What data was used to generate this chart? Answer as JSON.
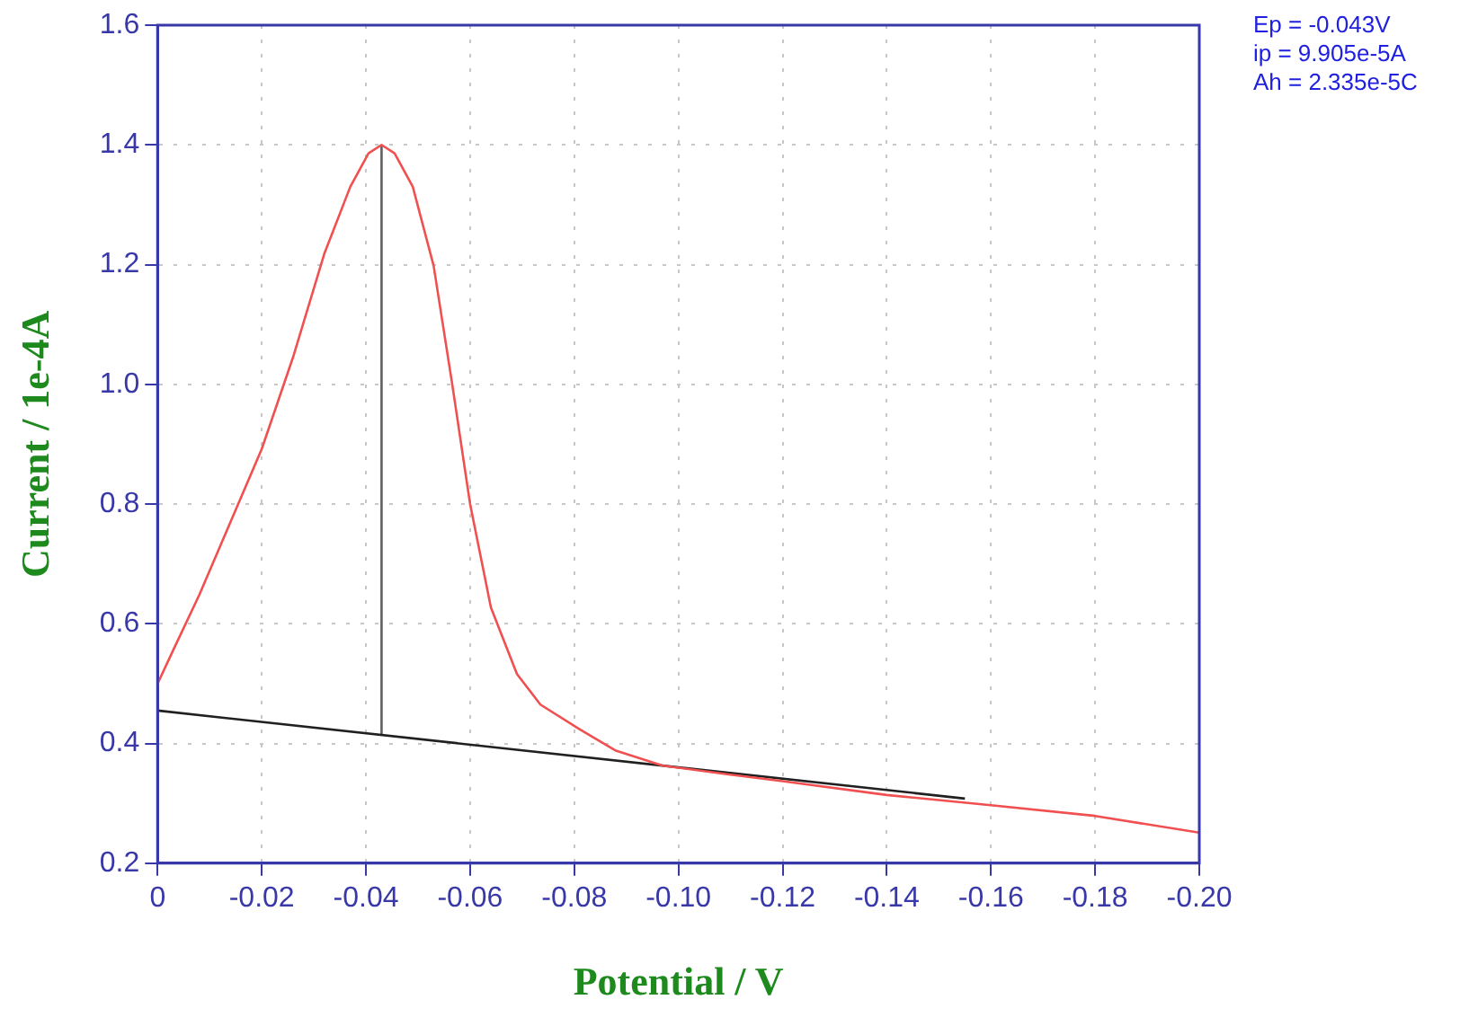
{
  "chart_data": {
    "type": "line",
    "xlabel": "Potential / V",
    "ylabel": "Current / 1e-4A",
    "annotations": [
      "Ep = -0.043V",
      "ip = 9.905e-5A",
      "Ah = 2.335e-5C"
    ],
    "xlim": [
      0,
      -0.2
    ],
    "xticks": [
      {
        "value": 0,
        "label": "0"
      },
      {
        "value": -0.02,
        "label": "-0.02"
      },
      {
        "value": -0.04,
        "label": "-0.04"
      },
      {
        "value": -0.06,
        "label": "-0.06"
      },
      {
        "value": -0.08,
        "label": "-0.08"
      },
      {
        "value": -0.1,
        "label": "-0.10"
      },
      {
        "value": -0.12,
        "label": "-0.12"
      },
      {
        "value": -0.14,
        "label": "-0.14"
      },
      {
        "value": -0.16,
        "label": "-0.16"
      },
      {
        "value": -0.18,
        "label": "-0.18"
      },
      {
        "value": -0.2,
        "label": "-0.20"
      }
    ],
    "ylim": [
      0.2,
      1.6
    ],
    "yticks": [
      0.2,
      0.4,
      0.6,
      0.8,
      {
        "value": 1,
        "label": "1.0"
      },
      1.2,
      1.4,
      1.6
    ],
    "grid": true,
    "series": [
      {
        "color": "#f05050",
        "x": [
          0,
          -0.003,
          -0.008,
          -0.014,
          -0.02,
          -0.026,
          -0.032,
          -0.037,
          -0.0405,
          -0.043,
          -0.0455,
          -0.049,
          -0.053,
          -0.0565,
          -0.06,
          -0.064,
          -0.069,
          -0.0735,
          -0.081,
          -0.088,
          -0.097,
          -0.11,
          -0.12,
          -0.14,
          -0.16,
          -0.18,
          -0.2
        ],
        "values": [
          0.5,
          0.556,
          0.648,
          0.77,
          0.892,
          1.045,
          1.218,
          1.33,
          1.386,
          1.4,
          1.386,
          1.33,
          1.198,
          1.004,
          0.8,
          0.627,
          0.516,
          0.465,
          0.424,
          0.388,
          0.363,
          0.348,
          0.337,
          0.314,
          0.297,
          0.279,
          0.251
        ]
      },
      {
        "color": "#202020",
        "x": [
          0,
          -0.155
        ],
        "values": [
          0.455,
          0.308
        ]
      },
      {
        "color": "#606060",
        "x": [
          -0.043,
          -0.043
        ],
        "values": [
          0.414,
          1.4
        ]
      }
    ]
  }
}
